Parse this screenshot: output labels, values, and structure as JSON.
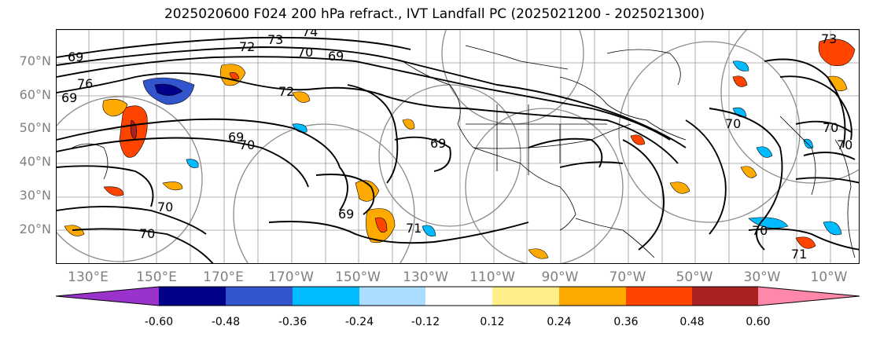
{
  "title": "2025020600 F024 200 hPa refract., IVT Landfall PC (2025021200 - 2025021300)",
  "lat_labels": [
    "70°N",
    "60°N",
    "50°N",
    "40°N",
    "30°N",
    "20°N"
  ],
  "lon_labels": [
    "130°E",
    "150°E",
    "170°E",
    "170°W",
    "150°W",
    "130°W",
    "110°W",
    "90°W",
    "70°W",
    "50°W",
    "30°W",
    "10°W"
  ],
  "contour_labels": [
    "74",
    "73",
    "72",
    "70",
    "69",
    "76",
    "72",
    "69",
    "69",
    "70",
    "70",
    "71",
    "70",
    "70",
    "70",
    "69",
    "69",
    "69",
    "71",
    "73",
    "70",
    "70"
  ],
  "colorbar": {
    "ticks": [
      "-0.60",
      "-0.48",
      "-0.36",
      "-0.24",
      "-0.12",
      "0.12",
      "0.24",
      "0.36",
      "0.48",
      "0.60"
    ],
    "colors": [
      "#9933cc",
      "#000088",
      "#3355cc",
      "#00bbff",
      "#aaddff",
      "#ffffff",
      "#ffee88",
      "#ffaa00",
      "#ff4400",
      "#aa2222",
      "#ff88aa"
    ]
  }
}
